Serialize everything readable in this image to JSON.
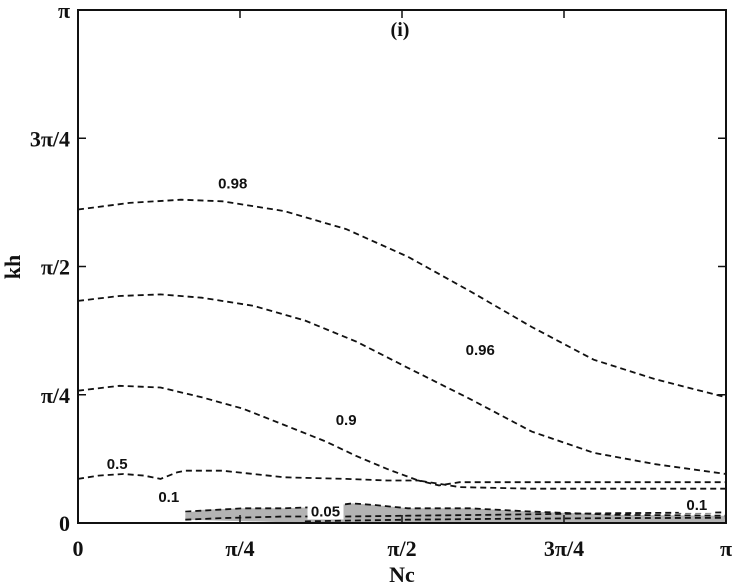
{
  "chart_data": {
    "type": "contour",
    "panel_label": "(i)",
    "xlabel": "Nc",
    "ylabel": "kh",
    "xlim": [
      0,
      3.1416
    ],
    "ylim": [
      0,
      3.1416
    ],
    "xticks": [
      {
        "value": 0,
        "label": "0"
      },
      {
        "value": 0.7854,
        "label": "π/4"
      },
      {
        "value": 1.5708,
        "label": "π/2"
      },
      {
        "value": 2.3562,
        "label": "3π/4"
      },
      {
        "value": 3.1416,
        "label": "π"
      }
    ],
    "yticks": [
      {
        "value": 0,
        "label": "0"
      },
      {
        "value": 0.7854,
        "label": "π/4"
      },
      {
        "value": 1.5708,
        "label": "π/2"
      },
      {
        "value": 2.3562,
        "label": "3π/4"
      },
      {
        "value": 3.1416,
        "label": "π"
      }
    ],
    "shaded_region_color": "#b3b3b3",
    "shaded_region": {
      "upper": [
        [
          0.52,
          0.06
        ],
        [
          0.6,
          0.08
        ],
        [
          0.8,
          0.09
        ],
        [
          1.0,
          0.09
        ],
        [
          1.2,
          0.1
        ],
        [
          1.33,
          0.12
        ],
        [
          1.44,
          0.11
        ],
        [
          1.6,
          0.09
        ],
        [
          1.9,
          0.09
        ],
        [
          2.2,
          0.07
        ],
        [
          2.6,
          0.05
        ],
        [
          3.1416,
          0.045
        ]
      ],
      "lower": [
        [
          3.1416,
          0.005
        ],
        [
          2.5,
          0.005
        ],
        [
          2.0,
          0.005
        ],
        [
          1.5,
          0.005
        ],
        [
          1.0,
          0.005
        ],
        [
          0.52,
          0.02
        ]
      ]
    },
    "contours": [
      {
        "level": "0.98",
        "label_at": [
          0.75,
          2.05
        ],
        "points": [
          [
            0,
            1.92
          ],
          [
            0.25,
            1.96
          ],
          [
            0.5,
            1.98
          ],
          [
            0.7,
            1.97
          ],
          [
            1.0,
            1.91
          ],
          [
            1.3,
            1.8
          ],
          [
            1.6,
            1.63
          ],
          [
            1.9,
            1.42
          ],
          [
            2.2,
            1.2
          ],
          [
            2.5,
            1.0
          ],
          [
            2.8,
            0.88
          ],
          [
            3.1416,
            0.77
          ]
        ]
      },
      {
        "level": "0.96",
        "label_at": [
          1.95,
          1.03
        ],
        "points": [
          [
            0,
            1.36
          ],
          [
            0.2,
            1.39
          ],
          [
            0.4,
            1.4
          ],
          [
            0.6,
            1.38
          ],
          [
            0.85,
            1.33
          ],
          [
            1.1,
            1.24
          ],
          [
            1.35,
            1.11
          ],
          [
            1.6,
            0.95
          ],
          [
            1.9,
            0.76
          ],
          [
            2.2,
            0.56
          ],
          [
            2.5,
            0.43
          ],
          [
            2.8,
            0.36
          ],
          [
            3.1416,
            0.3
          ]
        ]
      },
      {
        "level": "0.9",
        "label_at": [
          1.3,
          0.6
        ],
        "points": [
          [
            0,
            0.81
          ],
          [
            0.2,
            0.84
          ],
          [
            0.4,
            0.83
          ],
          [
            0.6,
            0.77
          ],
          [
            0.8,
            0.7
          ],
          [
            1.0,
            0.6
          ],
          [
            1.2,
            0.5
          ],
          [
            1.35,
            0.41
          ],
          [
            1.5,
            0.33
          ],
          [
            1.65,
            0.26
          ],
          [
            1.85,
            0.22
          ],
          [
            2.2,
            0.21
          ],
          [
            2.6,
            0.21
          ],
          [
            3.1416,
            0.21
          ]
        ]
      },
      {
        "level": "0.5",
        "label_at": [
          0.19,
          0.33
        ],
        "points": [
          [
            0,
            0.27
          ],
          [
            0.1,
            0.29
          ],
          [
            0.22,
            0.3
          ],
          [
            0.32,
            0.29
          ],
          [
            0.4,
            0.27
          ],
          [
            0.48,
            0.31
          ],
          [
            0.52,
            0.32
          ],
          [
            0.7,
            0.32
          ],
          [
            0.85,
            0.3
          ],
          [
            1.0,
            0.28
          ],
          [
            1.3,
            0.27
          ],
          [
            1.5,
            0.26
          ],
          [
            1.65,
            0.26
          ],
          [
            1.75,
            0.23
          ],
          [
            1.85,
            0.25
          ],
          [
            2.2,
            0.25
          ],
          [
            2.6,
            0.25
          ],
          [
            3.1416,
            0.25
          ]
        ]
      },
      {
        "level": "0.1",
        "label_at": [
          3.0,
          0.08
        ],
        "points": [
          [
            0.52,
            0.07
          ],
          [
            0.8,
            0.09
          ],
          [
            1.0,
            0.09
          ],
          [
            1.2,
            0.1
          ],
          [
            1.33,
            0.12
          ],
          [
            1.44,
            0.11
          ],
          [
            1.6,
            0.09
          ],
          [
            1.9,
            0.09
          ],
          [
            2.2,
            0.07
          ],
          [
            2.6,
            0.05
          ],
          [
            3.1416,
            0.045
          ]
        ]
      },
      {
        "level": "0.1",
        "label_at": [
          0.44,
          0.13
        ],
        "points": [
          [
            0.52,
            0.02
          ],
          [
            0.7,
            0.03
          ],
          [
            1.0,
            0.04
          ],
          [
            1.3,
            0.04
          ],
          [
            1.6,
            0.045
          ],
          [
            2.0,
            0.05
          ],
          [
            2.6,
            0.06
          ],
          [
            3.1416,
            0.065
          ]
        ]
      },
      {
        "level": "0.05",
        "label_at": [
          1.2,
          0.04
        ],
        "points": [
          [
            1.1,
            0.01
          ],
          [
            1.3,
            0.015
          ],
          [
            1.6,
            0.02
          ],
          [
            2.0,
            0.025
          ],
          [
            2.6,
            0.03
          ],
          [
            3.1416,
            0.032
          ]
        ]
      }
    ]
  }
}
